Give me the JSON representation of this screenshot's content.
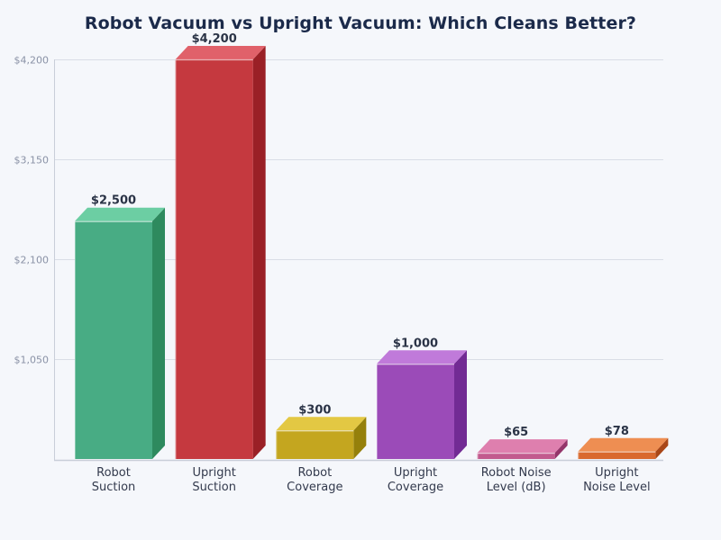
{
  "title": "Robot Vacuum vs Upright Vacuum: Which Cleans Better?",
  "chart_data": {
    "type": "bar",
    "style": "3d",
    "title": "Robot Vacuum vs Upright Vacuum: Which Cleans Better?",
    "xlabel": "",
    "ylabel": "",
    "categories": [
      "Robot Suction",
      "Upright Suction",
      "Robot Coverage",
      "Upright Coverage",
      "Robot Noise Level (dB)",
      "Upright Noise Level"
    ],
    "category_lines": [
      [
        "Robot",
        "Suction"
      ],
      [
        "Upright",
        "Suction"
      ],
      [
        "Robot",
        "Coverage"
      ],
      [
        "Upright",
        "Coverage"
      ],
      [
        "Robot Noise",
        "Level (dB)"
      ],
      [
        "Upright",
        "Noise Level"
      ]
    ],
    "values": [
      2500,
      4200,
      300,
      1000,
      65,
      78
    ],
    "value_labels": [
      "$2,500",
      "$4,200",
      "$300",
      "$1,000",
      "$65",
      "$78"
    ],
    "ylim": [
      0,
      4200
    ],
    "yticks": [
      1050,
      2100,
      3150,
      4200
    ],
    "ytick_labels": [
      "$1,050",
      "$2,100",
      "$3,150",
      "$4,200"
    ],
    "grid": true,
    "legend": null,
    "colors": [
      {
        "front": "#48ac84",
        "top": "#6ccea3",
        "side": "#2e8a5e"
      },
      {
        "front": "#c5393f",
        "top": "#e0616a",
        "side": "#9a2026"
      },
      {
        "front": "#c4a61f",
        "top": "#e3c843",
        "side": "#95800b"
      },
      {
        "front": "#9b4bb8",
        "top": "#c07ada",
        "side": "#722b94"
      },
      {
        "front": "#c25a8e",
        "top": "#de7fae",
        "side": "#94356a"
      },
      {
        "front": "#d9692e",
        "top": "#ee8e52",
        "side": "#a94718"
      }
    ]
  },
  "colors": {
    "background": "#f5f7fb",
    "title": "#1b2a4a",
    "gridline": "#d9dde6",
    "axis": "#c9ced9",
    "tick_text": "#8a92a6",
    "category_text": "#333a4d",
    "value_text": "#2a3346"
  }
}
